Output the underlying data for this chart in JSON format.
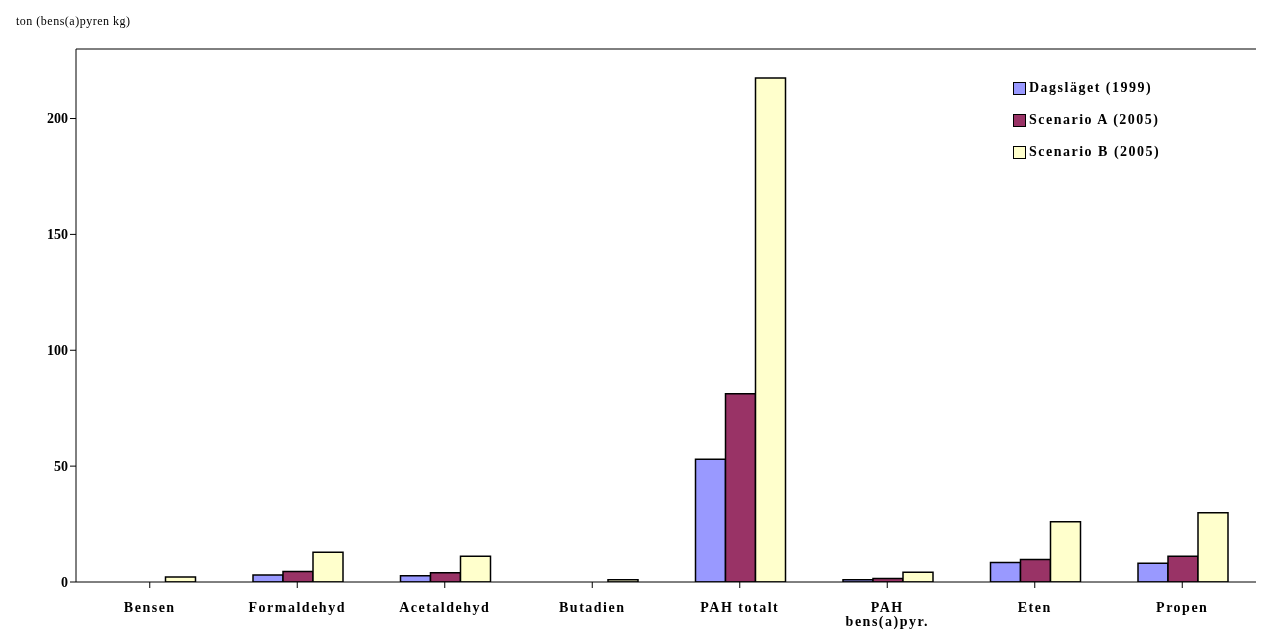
{
  "chart_data": {
    "type": "bar",
    "ylabel": "ton (bens(a)pyren kg)",
    "categories": [
      "Bensen",
      "Formaldehyd",
      "Acetaldehyd",
      "Butadien",
      "PAH totalt",
      "PAH bens(a)pyr.",
      "Eten",
      "Propen"
    ],
    "series": [
      {
        "name": "Dagsläget (1999)",
        "color": "#9999ff",
        "values": [
          null,
          3.0,
          2.7,
          null,
          53.0,
          1.0,
          8.4,
          8.1
        ]
      },
      {
        "name": "Scenario A (2005)",
        "color": "#993366",
        "values": [
          null,
          4.5,
          4.0,
          null,
          81.2,
          1.5,
          9.7,
          11.1
        ]
      },
      {
        "name": "Scenario B (2005)",
        "color": "#ffffcc",
        "values": [
          2.2,
          12.8,
          11.1,
          1.0,
          217.5,
          4.2,
          26.0,
          29.9
        ]
      }
    ],
    "ylim": [
      0,
      230
    ],
    "yticks": [
      0,
      50,
      100,
      150,
      200
    ],
    "grid": false,
    "legend": "top right"
  }
}
